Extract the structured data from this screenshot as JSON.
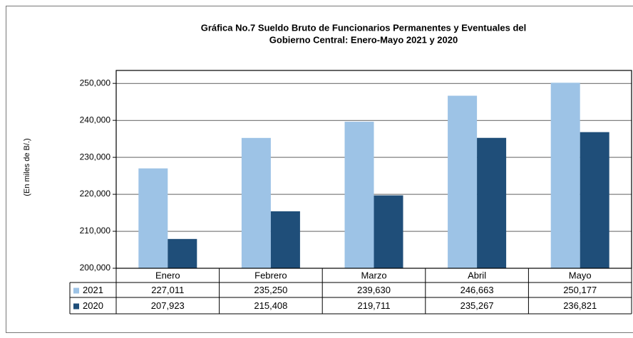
{
  "chart_data": {
    "type": "bar",
    "title": [
      "Gráfica No.7 Sueldo Bruto de Funcionarios Permanentes y Eventuales del",
      "Gobierno Central: Enero-Mayo 2021 y 2020"
    ],
    "y_label": "(En miles de B/.)",
    "categories": [
      "Enero",
      "Febrero",
      "Marzo",
      "Abril",
      "Mayo"
    ],
    "series": [
      {
        "name": "2021",
        "color": "#9dc3e6",
        "values": [
          227011,
          235250,
          239630,
          246663,
          250177
        ],
        "value_labels": [
          "227,011",
          "235,250",
          "239,630",
          "246,663",
          "250,177"
        ]
      },
      {
        "name": "2020",
        "color": "#1f4e79",
        "values": [
          207923,
          215408,
          219711,
          235267,
          236821
        ],
        "value_labels": [
          "207,923",
          "215,408",
          "219,711",
          "235,267",
          "236,821"
        ]
      }
    ],
    "ylim": [
      200000,
      253500
    ],
    "yticks": [
      {
        "value": 200000,
        "label": "200,000"
      },
      {
        "value": 210000,
        "label": "210,000"
      },
      {
        "value": 220000,
        "label": "220,000"
      },
      {
        "value": 230000,
        "label": "230,000"
      },
      {
        "value": 240000,
        "label": "240,000"
      },
      {
        "value": 250000,
        "label": "250,000"
      }
    ],
    "grid": true
  }
}
